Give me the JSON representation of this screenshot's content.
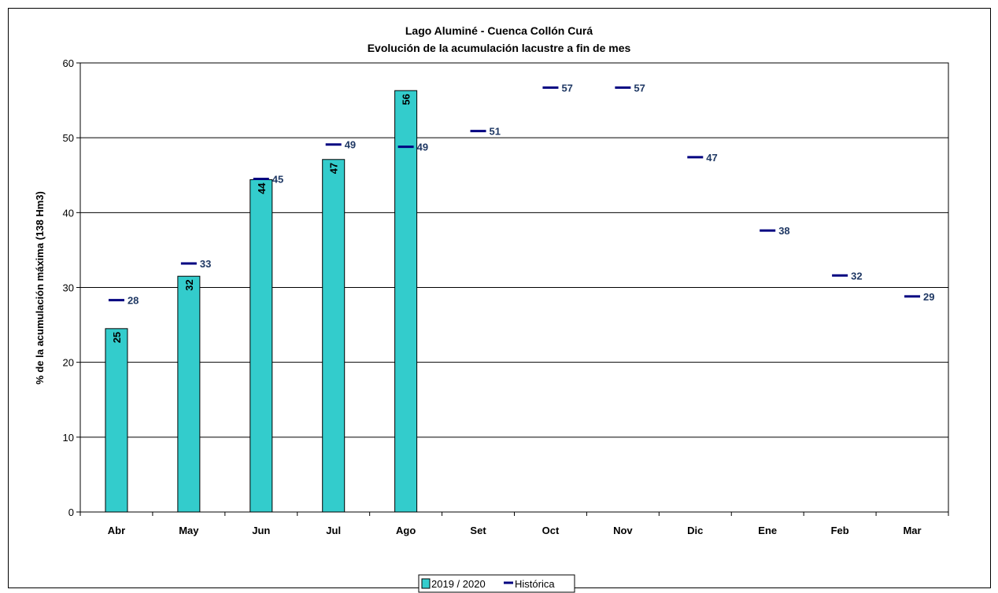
{
  "chart_data": {
    "type": "bar",
    "title": "Lago Aluminé - Cuenca Collón Curá",
    "subtitle": "Evolución de la acumulación lacustre a fin de mes",
    "ylabel": "% de la acumulación máxima (138 Hm3)",
    "xlabel": "",
    "ylim": [
      0,
      60
    ],
    "yticks": [
      "0",
      "10",
      "20",
      "30",
      "40",
      "50",
      "60"
    ],
    "grid": true,
    "legend_position": "bottom-center",
    "categories": [
      "Abr",
      "May",
      "Jun",
      "Jul",
      "Ago",
      "Set",
      "Oct",
      "Nov",
      "Dic",
      "Ene",
      "Feb",
      "Mar"
    ],
    "series": [
      {
        "name": "2019 / 2020",
        "type": "bar",
        "color": "#33cccc",
        "values": [
          24.5,
          31.5,
          44.4,
          47.1,
          56.3,
          null,
          null,
          null,
          null,
          null,
          null,
          null
        ],
        "labels": [
          "25",
          "32",
          "44",
          "47",
          "56",
          "",
          "",
          "",
          "",
          "",
          "",
          ""
        ]
      },
      {
        "name": "Histórica",
        "type": "marker",
        "color": "#000080",
        "label_color": "#1f3864",
        "values": [
          28.3,
          33.2,
          44.5,
          49.1,
          48.8,
          50.9,
          56.7,
          56.7,
          47.4,
          37.6,
          31.6,
          28.8
        ],
        "labels": [
          "28",
          "33",
          "45",
          "49",
          "49",
          "51",
          "57",
          "57",
          "47",
          "38",
          "32",
          "29"
        ]
      }
    ]
  }
}
